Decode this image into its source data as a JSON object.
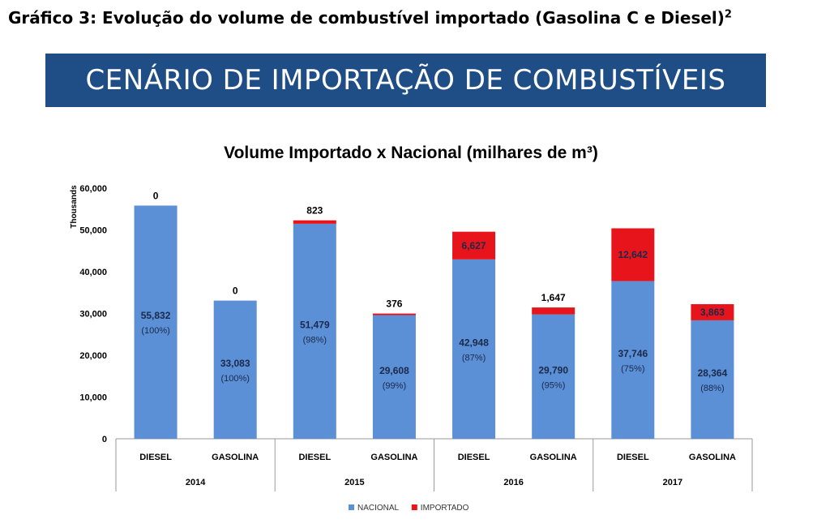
{
  "figure": {
    "caption": "Gráfico 3: Evolução do volume de combustível importado (Gasolina C e Diesel)",
    "caption_sup": "2",
    "banner_title": "CENÁRIO DE IMPORTAÇÃO DE COMBUSTÍVEIS"
  },
  "chart_data": {
    "type": "bar",
    "stacked": true,
    "title": "Volume Importado x Nacional (milhares de m³)",
    "ylabel": "Thousands",
    "ylim": [
      0,
      60000
    ],
    "yticks": [
      0,
      10000,
      20000,
      30000,
      40000,
      50000,
      60000
    ],
    "ytick_labels": [
      "0",
      "10,000",
      "20,000",
      "30,000",
      "40,000",
      "50,000",
      "60,000"
    ],
    "grid": false,
    "legend_position": "bottom",
    "categories": [
      "DIESEL",
      "GASOLINA",
      "DIESEL",
      "GASOLINA",
      "DIESEL",
      "GASOLINA",
      "DIESEL",
      "GASOLINA"
    ],
    "groups": [
      {
        "label": "2014",
        "span": 2
      },
      {
        "label": "2015",
        "span": 2
      },
      {
        "label": "2016",
        "span": 2
      },
      {
        "label": "2017",
        "span": 2
      }
    ],
    "series": [
      {
        "name": "NACIONAL",
        "color": "#5b8fd6",
        "values": [
          55832,
          33083,
          51479,
          29608,
          42948,
          29790,
          37746,
          28364
        ],
        "labels": [
          "55,832",
          "33,083",
          "51,479",
          "29,608",
          "42,948",
          "29,790",
          "37,746",
          "28,364"
        ],
        "pct_labels": [
          "(100%)",
          "(100%)",
          "(98%)",
          "(99%)",
          "(87%)",
          "(95%)",
          "(75%)",
          "(88%)"
        ]
      },
      {
        "name": "IMPORTADO",
        "color": "#e8141b",
        "values": [
          0,
          0,
          823,
          376,
          6627,
          1647,
          12642,
          3863
        ],
        "labels": [
          "0",
          "0",
          "823",
          "376",
          "6,627",
          "1,647",
          "12,642",
          "3,863"
        ]
      }
    ]
  }
}
